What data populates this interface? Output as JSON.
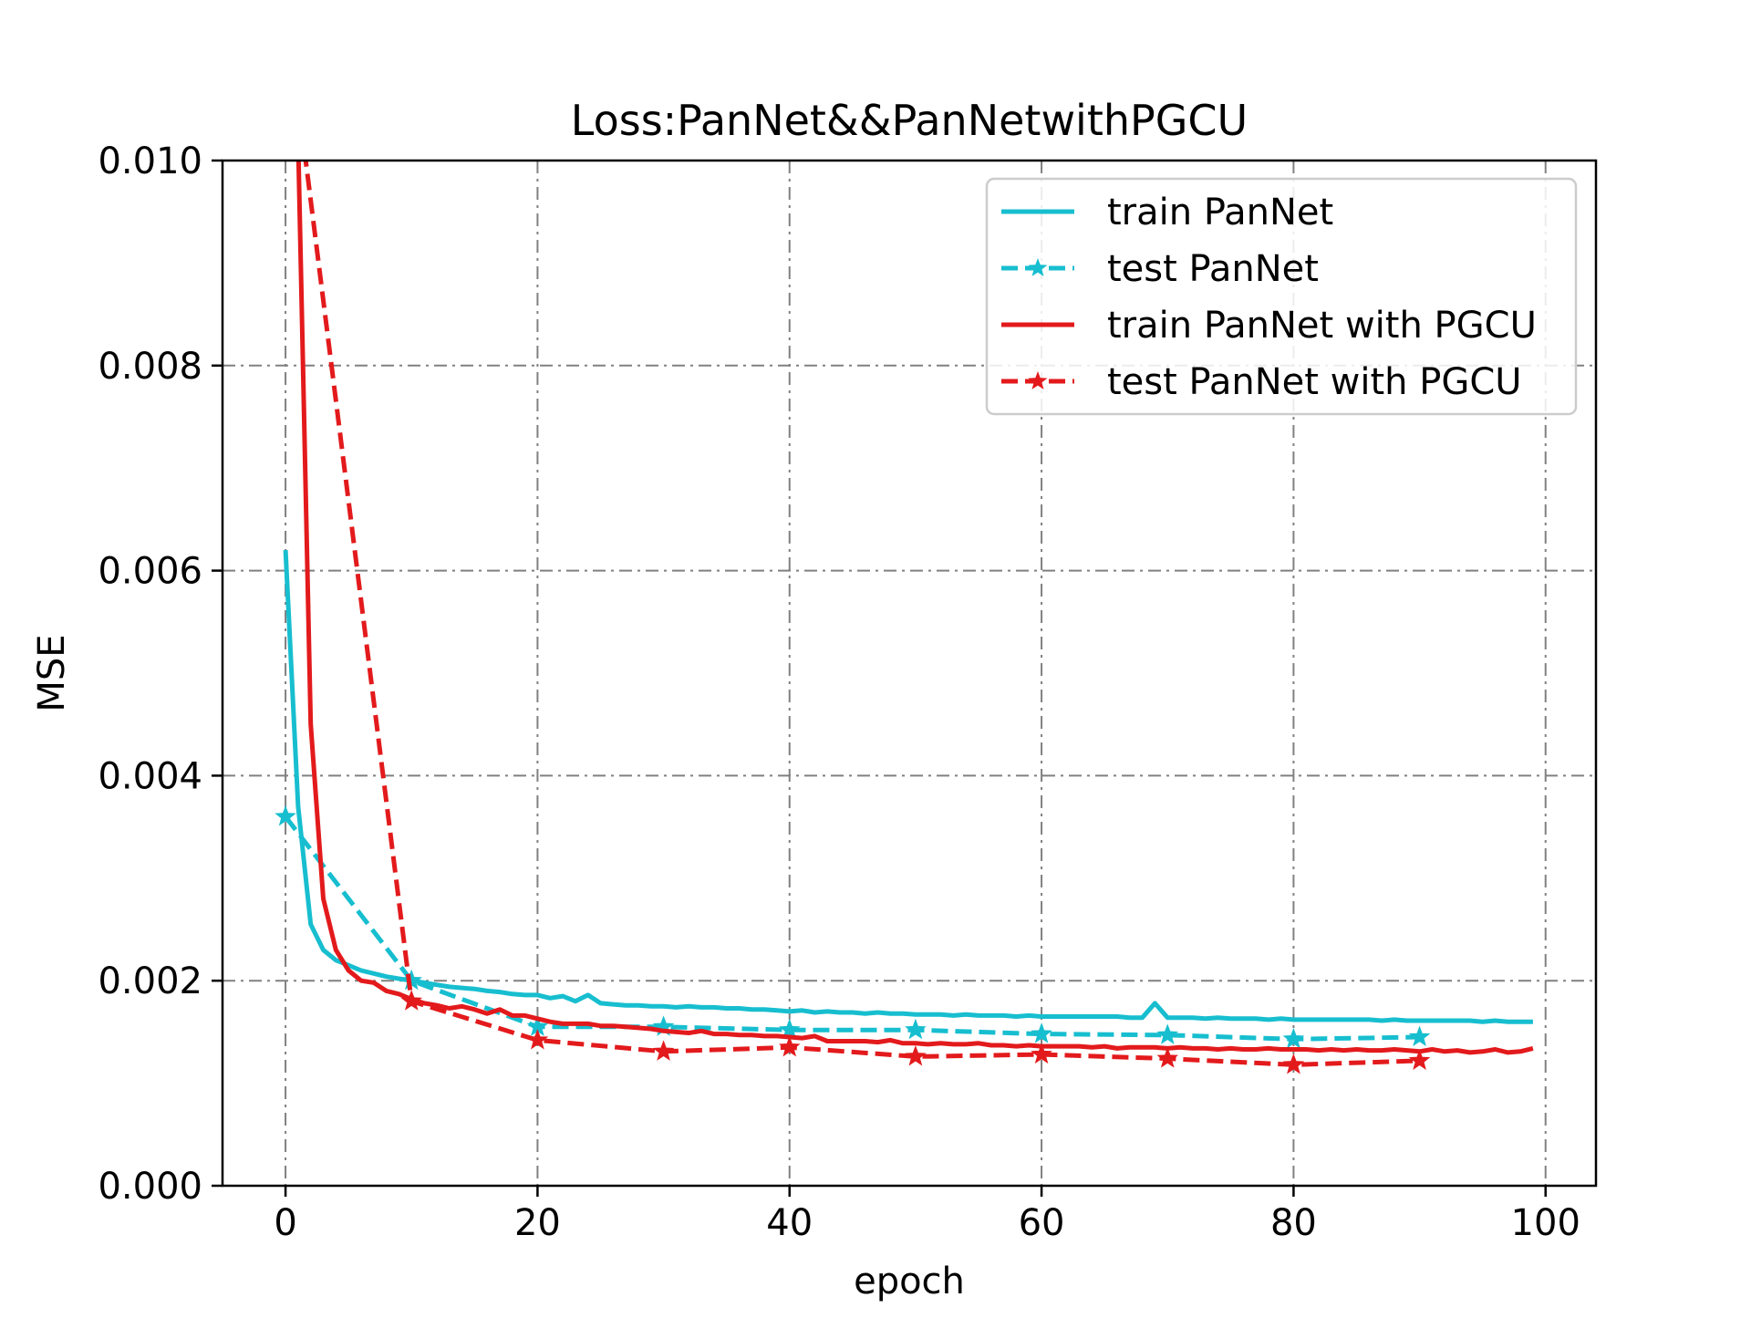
{
  "chart_data": {
    "type": "line",
    "title": "Loss:PanNet&&PanNetwithPGCU",
    "xlabel": "epoch",
    "ylabel": "MSE",
    "xlim": [
      -5,
      104
    ],
    "ylim": [
      0,
      0.01
    ],
    "x_ticks": [
      0,
      20,
      40,
      60,
      80,
      100
    ],
    "x_tick_labels": [
      "0",
      "20",
      "40",
      "60",
      "80",
      "100"
    ],
    "y_ticks": [
      0,
      0.002,
      0.004,
      0.006,
      0.008,
      0.01
    ],
    "y_tick_labels": [
      "0.000",
      "0.002",
      "0.004",
      "0.006",
      "0.008",
      "0.010"
    ],
    "grid": true,
    "grid_style": "dashdot",
    "legend_position": "top-right",
    "series": [
      {
        "name": "train PanNet",
        "color": "#17becf",
        "line_style": "solid",
        "marker": "none",
        "x": [
          0,
          1,
          2,
          3,
          4,
          5,
          6,
          7,
          8,
          9,
          10,
          11,
          12,
          13,
          14,
          15,
          16,
          17,
          18,
          19,
          20,
          21,
          22,
          23,
          24,
          25,
          26,
          27,
          28,
          29,
          30,
          31,
          32,
          33,
          34,
          35,
          36,
          37,
          38,
          39,
          40,
          41,
          42,
          43,
          44,
          45,
          46,
          47,
          48,
          49,
          50,
          51,
          52,
          53,
          54,
          55,
          56,
          57,
          58,
          59,
          60,
          61,
          62,
          63,
          64,
          65,
          66,
          67,
          68,
          69,
          70,
          71,
          72,
          73,
          74,
          75,
          76,
          77,
          78,
          79,
          80,
          81,
          82,
          83,
          84,
          85,
          86,
          87,
          88,
          89,
          90,
          91,
          92,
          93,
          94,
          95,
          96,
          97,
          98,
          99
        ],
        "y": [
          0.0062,
          0.0037,
          0.00255,
          0.0023,
          0.0022,
          0.00215,
          0.0021,
          0.00207,
          0.00204,
          0.00202,
          0.002,
          0.00198,
          0.00196,
          0.00194,
          0.00193,
          0.00192,
          0.0019,
          0.00189,
          0.00187,
          0.00186,
          0.00186,
          0.00183,
          0.00185,
          0.0018,
          0.00186,
          0.00178,
          0.00177,
          0.00176,
          0.00176,
          0.00175,
          0.00175,
          0.00174,
          0.00175,
          0.00174,
          0.00174,
          0.00173,
          0.00173,
          0.00172,
          0.00172,
          0.00171,
          0.0017,
          0.00171,
          0.00169,
          0.0017,
          0.00169,
          0.00169,
          0.00168,
          0.00169,
          0.00168,
          0.00168,
          0.00167,
          0.00167,
          0.00167,
          0.00166,
          0.00167,
          0.00166,
          0.00166,
          0.00166,
          0.00165,
          0.00166,
          0.00165,
          0.00165,
          0.00165,
          0.00165,
          0.00165,
          0.00165,
          0.00165,
          0.00164,
          0.00164,
          0.00178,
          0.00164,
          0.00164,
          0.00164,
          0.00163,
          0.00164,
          0.00163,
          0.00163,
          0.00163,
          0.00162,
          0.00163,
          0.00162,
          0.00162,
          0.00162,
          0.00162,
          0.00162,
          0.00162,
          0.00162,
          0.00161,
          0.00162,
          0.00161,
          0.00161,
          0.00161,
          0.00161,
          0.00161,
          0.00161,
          0.0016,
          0.00161,
          0.0016,
          0.0016,
          0.0016
        ]
      },
      {
        "name": "test PanNet",
        "color": "#17becf",
        "line_style": "dashed",
        "marker": "star",
        "x": [
          0,
          10,
          20,
          30,
          40,
          50,
          60,
          70,
          80,
          90
        ],
        "y": [
          0.0036,
          0.002,
          0.00155,
          0.00155,
          0.00152,
          0.00152,
          0.00148,
          0.00147,
          0.00143,
          0.00145
        ]
      },
      {
        "name": "train PanNet with PGCU",
        "color": "#e31a1c",
        "line_style": "solid",
        "marker": "none",
        "x": [
          1,
          2,
          3,
          4,
          5,
          6,
          7,
          8,
          9,
          10,
          11,
          12,
          13,
          14,
          15,
          16,
          17,
          18,
          19,
          20,
          21,
          22,
          23,
          24,
          25,
          26,
          27,
          28,
          29,
          30,
          31,
          32,
          33,
          34,
          35,
          36,
          37,
          38,
          39,
          40,
          41,
          42,
          43,
          44,
          45,
          46,
          47,
          48,
          49,
          50,
          51,
          52,
          53,
          54,
          55,
          56,
          57,
          58,
          59,
          60,
          61,
          62,
          63,
          64,
          65,
          66,
          67,
          68,
          69,
          70,
          71,
          72,
          73,
          74,
          75,
          76,
          77,
          78,
          79,
          80,
          81,
          82,
          83,
          84,
          85,
          86,
          87,
          88,
          89,
          90,
          91,
          92,
          93,
          94,
          95,
          96,
          97,
          98,
          99
        ],
        "y": [
          0.0102,
          0.0045,
          0.0028,
          0.0023,
          0.0021,
          0.002,
          0.00198,
          0.0019,
          0.00187,
          0.00182,
          0.00178,
          0.00176,
          0.00173,
          0.00175,
          0.00172,
          0.00168,
          0.00172,
          0.00166,
          0.00166,
          0.00163,
          0.0016,
          0.00158,
          0.00158,
          0.00158,
          0.00156,
          0.00156,
          0.00155,
          0.00154,
          0.00153,
          0.00151,
          0.0015,
          0.00149,
          0.00151,
          0.00148,
          0.00148,
          0.00147,
          0.00147,
          0.00146,
          0.00146,
          0.00145,
          0.00144,
          0.00146,
          0.00141,
          0.00141,
          0.00141,
          0.00141,
          0.0014,
          0.00142,
          0.00139,
          0.00139,
          0.00138,
          0.00139,
          0.00138,
          0.00138,
          0.00139,
          0.00137,
          0.00137,
          0.00136,
          0.00137,
          0.00136,
          0.00136,
          0.00136,
          0.00136,
          0.00135,
          0.00136,
          0.00134,
          0.00135,
          0.00135,
          0.00135,
          0.00134,
          0.00135,
          0.00134,
          0.00134,
          0.00133,
          0.00134,
          0.00133,
          0.00133,
          0.00134,
          0.00133,
          0.00133,
          0.00133,
          0.00132,
          0.00133,
          0.00132,
          0.00133,
          0.00132,
          0.00132,
          0.00133,
          0.00132,
          0.00131,
          0.00133,
          0.00131,
          0.00132,
          0.0013,
          0.00131,
          0.00133,
          0.0013,
          0.00131,
          0.00134
        ]
      },
      {
        "name": "test PanNet with PGCU",
        "color": "#e31a1c",
        "line_style": "dashed",
        "marker": "star",
        "x": [
          1.5,
          10,
          20,
          30,
          40,
          50,
          60,
          70,
          80,
          90
        ],
        "y": [
          0.0101,
          0.0018,
          0.00142,
          0.00131,
          0.00135,
          0.00126,
          0.00128,
          0.00124,
          0.00118,
          0.00122
        ]
      }
    ]
  }
}
